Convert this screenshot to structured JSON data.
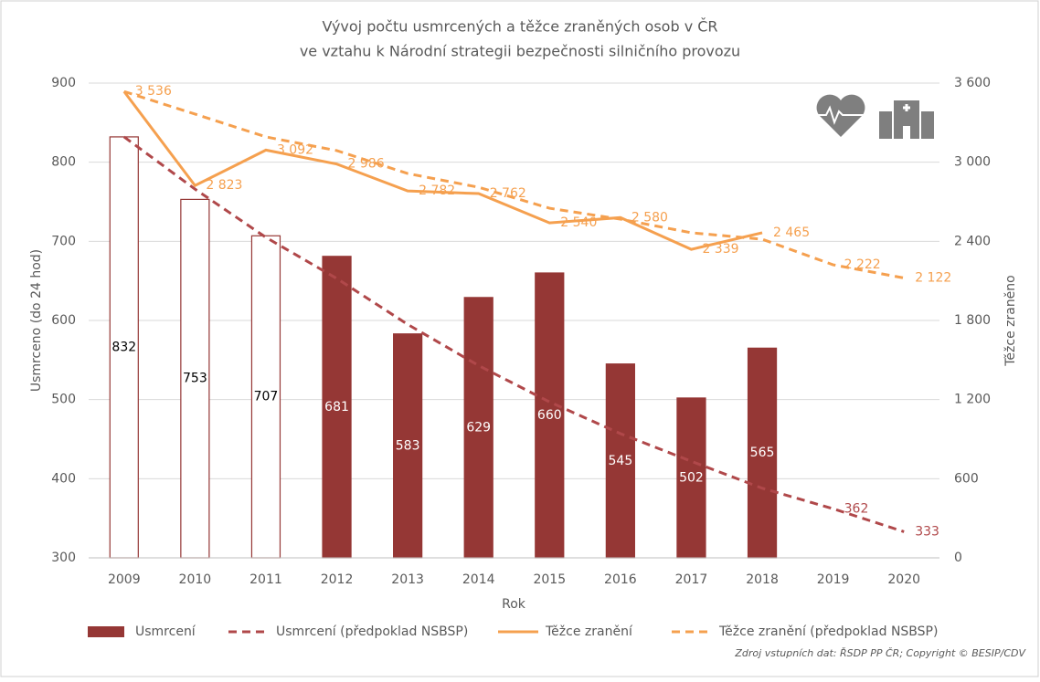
{
  "chart_data": {
    "type": "bar_line",
    "title": [
      "Vývoj počtu usmrcených a těžce zraněných osob v ČR",
      "ve vztahu k Národní strategii bezpečnosti silničního provozu"
    ],
    "x_label": "Rok",
    "y_label": "Usmrceno (do 24 hod)",
    "y2_label": "Těžce zraněno",
    "source": "Zdroj vstupních dat: ŘSDP PP ČR; Copyright © BESIP/CDV",
    "categories": [
      "2009",
      "2010",
      "2011",
      "2012",
      "2013",
      "2014",
      "2015",
      "2016",
      "2017",
      "2018",
      "2019",
      "2020"
    ],
    "ylim": [
      300,
      900
    ],
    "yticks": [
      300,
      400,
      500,
      600,
      700,
      800,
      900
    ],
    "y2lim": [
      0,
      3600
    ],
    "y2ticks": [
      0,
      600,
      {
        "value": 1200,
        "label": "1 200"
      },
      {
        "value": 1800,
        "label": "1 800"
      },
      {
        "value": 2400,
        "label": "2 400"
      },
      {
        "value": 3000,
        "label": "3 000"
      },
      {
        "value": 3600,
        "label": "3 600"
      }
    ],
    "grid": true,
    "legend": "bottom",
    "series": [
      {
        "name": "Usmrcení",
        "kind": "bar",
        "color": "#953735",
        "fill_style": [
          "outline",
          "outline",
          "outline",
          "solid",
          "solid",
          "solid",
          "solid",
          "solid",
          "solid",
          "solid",
          null,
          null
        ],
        "values": [
          832,
          753,
          707,
          681,
          583,
          629,
          660,
          545,
          502,
          565,
          null,
          null
        ]
      },
      {
        "name": "Usmrcení (předpoklad NSBSP)",
        "kind": "line",
        "dash": true,
        "color": "#b0484a",
        "values": [
          832,
          766,
          705,
          653,
          595,
          543,
          497,
          457,
          422,
          388,
          362,
          333
        ],
        "value_labels": [
          null,
          null,
          null,
          null,
          null,
          null,
          null,
          null,
          null,
          null,
          "362",
          "333"
        ]
      },
      {
        "name": "Těžce zranění",
        "kind": "line",
        "dash": false,
        "axis": "y2",
        "color": "#f5a04f",
        "values": [
          3536,
          2823,
          3092,
          2986,
          2782,
          2762,
          2540,
          2580,
          2339,
          2465,
          null,
          null
        ],
        "value_labels": [
          null,
          "2 823",
          "3 092",
          "2 986",
          "2 782",
          "2 762",
          "2 540",
          "2 580",
          "2 339",
          "2 465",
          null,
          null
        ]
      },
      {
        "name": "Těžce zranění (předpoklad NSBSP)",
        "kind": "line",
        "dash": true,
        "axis": "y2",
        "color": "#f5a04f",
        "values": [
          3536,
          3365,
          3192,
          3088,
          2914,
          2810,
          2651,
          2568,
          2465,
          2416,
          2222,
          2122
        ],
        "value_labels": [
          "3 536",
          null,
          null,
          null,
          null,
          null,
          null,
          null,
          null,
          null,
          "2 222",
          "2 122"
        ]
      }
    ]
  }
}
